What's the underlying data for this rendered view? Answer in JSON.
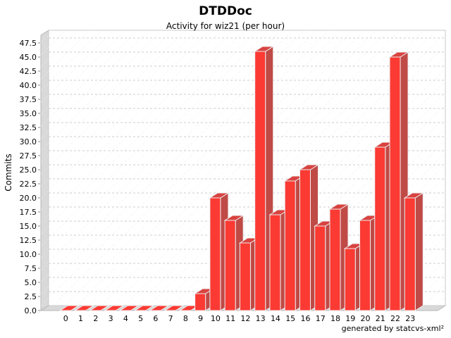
{
  "chart_data": {
    "type": "bar",
    "title": "DTDDoc",
    "subtitle": "Activity for wiz21 (per hour)",
    "xlabel": "",
    "ylabel": "Commits",
    "footer": "generated by statcvs-xml²",
    "categories": [
      "0",
      "1",
      "2",
      "3",
      "4",
      "5",
      "6",
      "7",
      "8",
      "9",
      "10",
      "11",
      "12",
      "13",
      "14",
      "15",
      "16",
      "17",
      "18",
      "19",
      "20",
      "21",
      "22",
      "23"
    ],
    "values": [
      0,
      0,
      0,
      0,
      0,
      0,
      0,
      0,
      0,
      3,
      20,
      16,
      12,
      46,
      17,
      23,
      25,
      15,
      18,
      11,
      16,
      29,
      45,
      20
    ],
    "ylim": [
      0,
      47.5
    ],
    "ytick_step": 2.5,
    "ytick_decimals": 1,
    "grid": "horizontal-dashed",
    "legend": "none",
    "style_3d": true,
    "colors": {
      "bar_front": "#fb3a33",
      "bar_side": "#c04a46",
      "bar_top": "#d84340",
      "bar_outline": "#eeeeee",
      "wall_fill": "#d9d9d9",
      "wall_edge": "#b5b5b5",
      "plot_bg": "#ffffff",
      "plot_border": "#c9c9c9",
      "gridline": "#cccccc",
      "hatch": "#ededed",
      "tick": "#888888",
      "text": "#000000"
    }
  }
}
